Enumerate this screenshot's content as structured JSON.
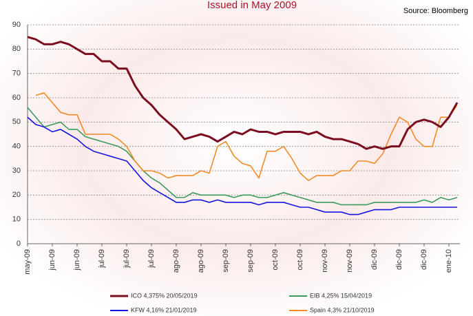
{
  "chart_data": {
    "type": "line",
    "title": "Issued in May 2009",
    "annotations": [
      "Source: Bloomberg"
    ],
    "categories": [
      "may-09",
      null,
      null,
      "jun-09",
      null,
      null,
      "jun-09",
      null,
      null,
      "jul-09",
      null,
      null,
      "jul-09",
      null,
      null,
      "jul-09",
      null,
      null,
      "ago-09",
      null,
      null,
      "ago-09",
      null,
      null,
      "sep-09",
      null,
      null,
      "sep-09",
      null,
      null,
      "oct-09",
      null,
      null,
      "oct-09",
      null,
      null,
      "nov-09",
      null,
      null,
      "nov-09",
      null,
      null,
      "dic-09",
      null,
      null,
      "dic-09",
      null,
      null,
      "dic-09",
      null,
      null,
      "ene-10",
      null
    ],
    "ylim": [
      0,
      90
    ],
    "yticks": [
      0,
      10,
      20,
      30,
      40,
      50,
      60,
      70,
      80,
      90
    ],
    "grid": true,
    "series": [
      {
        "name": "ICO 4,375% 20/05/2019",
        "color": "#7b0d1e",
        "values": [
          85,
          84,
          82,
          82,
          83,
          82,
          80,
          78,
          78,
          75,
          75,
          72,
          72,
          65,
          60,
          57,
          53,
          50,
          47,
          43,
          44,
          45,
          44,
          42,
          44,
          46,
          45,
          47,
          46,
          46,
          45,
          46,
          46,
          46,
          45,
          46,
          44,
          43,
          43,
          42,
          41,
          39,
          40,
          39,
          40,
          40,
          47,
          50,
          51,
          50,
          48,
          52,
          58
        ]
      },
      {
        "name": "EIB 4,25% 15/04/2019",
        "color": "#3a9a5b",
        "values": [
          56,
          52,
          48,
          49,
          50,
          47,
          47,
          44,
          43,
          42,
          41,
          40,
          38,
          34,
          30,
          27,
          25,
          22,
          19,
          19,
          21,
          20,
          20,
          20,
          20,
          19,
          20,
          20,
          19,
          19,
          20,
          21,
          20,
          19,
          18,
          17,
          17,
          17,
          16,
          16,
          16,
          16,
          17,
          17,
          17,
          17,
          17,
          17,
          18,
          17,
          19,
          18,
          19
        ]
      },
      {
        "name": "KFW 4,16% 21/01/2019",
        "color": "#1414e0",
        "values": [
          52,
          49,
          48,
          46,
          47,
          45,
          43,
          40,
          38,
          37,
          36,
          35,
          34,
          30,
          26,
          23,
          21,
          19,
          17,
          17,
          18,
          18,
          17,
          18,
          17,
          17,
          17,
          17,
          16,
          17,
          17,
          17,
          16,
          15,
          15,
          14,
          13,
          13,
          13,
          12,
          12,
          13,
          14,
          14,
          14,
          15,
          15,
          15,
          15,
          15,
          15,
          15,
          15
        ]
      },
      {
        "name": "Spain 4,3% 21/10/2019",
        "color": "#f08a24",
        "values": [
          null,
          61,
          62,
          58,
          54,
          53,
          53,
          45,
          45,
          45,
          45,
          43,
          40,
          34,
          30,
          30,
          29,
          27,
          28,
          28,
          28,
          30,
          29,
          40,
          42,
          36,
          33,
          32,
          27,
          38,
          38,
          40,
          35,
          29,
          26,
          28,
          28,
          28,
          30,
          30,
          34,
          34,
          33,
          37,
          45,
          52,
          50,
          43,
          40,
          40,
          52,
          52,
          57
        ]
      }
    ]
  }
}
